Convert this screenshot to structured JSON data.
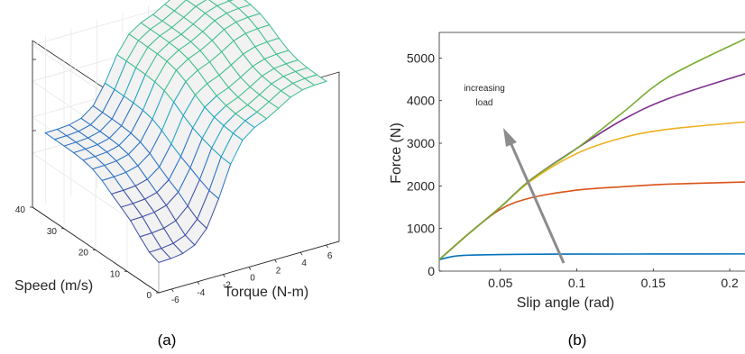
{
  "figure": {
    "caption_a": "(a)",
    "caption_b": "(b)"
  },
  "chart_data": [
    {
      "type": "surface",
      "panel": "(a)",
      "xlabel": "Torque (N-m)",
      "ylabel": "Speed (m/s)",
      "x_ticks": [
        "-6",
        "-4",
        "-2",
        "0",
        "2",
        "4",
        "6"
      ],
      "y_ticks": [
        "0",
        "10",
        "20",
        "30",
        "40"
      ],
      "xlim": [
        -7,
        7
      ],
      "ylim": [
        0,
        40
      ],
      "grid": true,
      "colormap": [
        "#3d4fa6",
        "#2a72c4",
        "#20a6c0",
        "#3fbf8c",
        "#8fd36b"
      ]
    },
    {
      "type": "line",
      "panel": "(b)",
      "xlabel": "Slip angle (rad)",
      "ylabel": "Force (N)",
      "xlim": [
        0.01,
        0.21
      ],
      "ylim": [
        0,
        5600
      ],
      "x_ticks": [
        "0.05",
        "0.1",
        "0.15",
        "0.2"
      ],
      "y_ticks": [
        "0",
        "1000",
        "2000",
        "3000",
        "4000",
        "5000"
      ],
      "annotation": {
        "text_line1": "increasing",
        "text_line2": "load"
      },
      "series": [
        {
          "color": "#0072BD",
          "x": [
            0.01,
            0.02,
            0.03,
            0.05,
            0.08,
            0.1,
            0.15,
            0.21
          ],
          "y": [
            270,
            350,
            375,
            390,
            398,
            400,
            402,
            404
          ]
        },
        {
          "color": "#D95319",
          "x": [
            0.01,
            0.03,
            0.05,
            0.07,
            0.1,
            0.13,
            0.16,
            0.21
          ],
          "y": [
            270,
            900,
            1450,
            1720,
            1900,
            1980,
            2040,
            2090
          ]
        },
        {
          "color": "#EDB120",
          "x": [
            0.01,
            0.03,
            0.05,
            0.07,
            0.1,
            0.13,
            0.16,
            0.21
          ],
          "y": [
            270,
            900,
            1500,
            2120,
            2760,
            3130,
            3330,
            3500
          ]
        },
        {
          "color": "#7E2F8E",
          "x": [
            0.01,
            0.03,
            0.05,
            0.07,
            0.1,
            0.13,
            0.16,
            0.21
          ],
          "y": [
            270,
            900,
            1500,
            2150,
            2880,
            3550,
            4050,
            4630
          ]
        },
        {
          "color": "#77AC30",
          "x": [
            0.01,
            0.03,
            0.05,
            0.07,
            0.1,
            0.13,
            0.16,
            0.21
          ],
          "y": [
            270,
            900,
            1500,
            2150,
            2880,
            3720,
            4560,
            5450
          ]
        }
      ]
    }
  ]
}
